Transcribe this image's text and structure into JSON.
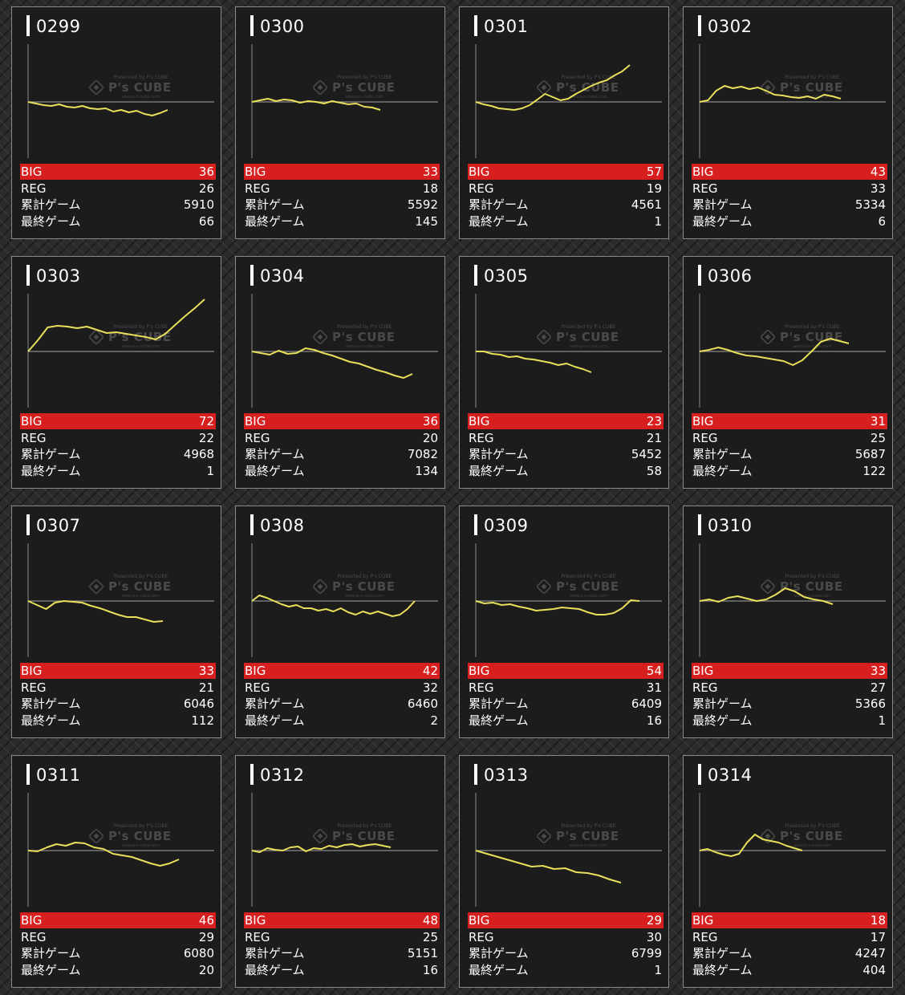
{
  "labels": {
    "big": "BIG",
    "reg": "REG",
    "total_games": "累計ゲーム",
    "last_games": "最終ゲーム"
  },
  "watermark": {
    "top": "Presented by P's CUBE",
    "brand": "P's CUBE",
    "sub": "www.p-s-cube.com"
  },
  "colors": {
    "background": "#2b2b2b",
    "card": "#1c1c1c",
    "big_bar": "#d81f1f",
    "graph_line": "#e8e05a",
    "baseline": "#8a8a8a"
  },
  "machines": [
    {
      "id": "0299",
      "big": "36",
      "reg": "26",
      "total": "5910",
      "last": "66"
    },
    {
      "id": "0300",
      "big": "33",
      "reg": "18",
      "total": "5592",
      "last": "145"
    },
    {
      "id": "0301",
      "big": "57",
      "reg": "19",
      "total": "4561",
      "last": "1"
    },
    {
      "id": "0302",
      "big": "43",
      "reg": "33",
      "total": "5334",
      "last": "6"
    },
    {
      "id": "0303",
      "big": "72",
      "reg": "22",
      "total": "4968",
      "last": "1"
    },
    {
      "id": "0304",
      "big": "36",
      "reg": "20",
      "total": "7082",
      "last": "134"
    },
    {
      "id": "0305",
      "big": "23",
      "reg": "21",
      "total": "5452",
      "last": "58"
    },
    {
      "id": "0306",
      "big": "31",
      "reg": "25",
      "total": "5687",
      "last": "122"
    },
    {
      "id": "0307",
      "big": "33",
      "reg": "21",
      "total": "6046",
      "last": "112"
    },
    {
      "id": "0308",
      "big": "42",
      "reg": "32",
      "total": "6460",
      "last": "2"
    },
    {
      "id": "0309",
      "big": "54",
      "reg": "31",
      "total": "6409",
      "last": "16"
    },
    {
      "id": "0310",
      "big": "33",
      "reg": "27",
      "total": "5366",
      "last": "1"
    },
    {
      "id": "0311",
      "big": "46",
      "reg": "29",
      "total": "6080",
      "last": "20"
    },
    {
      "id": "0312",
      "big": "48",
      "reg": "25",
      "total": "5151",
      "last": "16"
    },
    {
      "id": "0313",
      "big": "29",
      "reg": "30",
      "total": "6799",
      "last": "1"
    },
    {
      "id": "0314",
      "big": "18",
      "reg": "17",
      "total": "4247",
      "last": "404"
    }
  ],
  "chart_data": [
    {
      "type": "line",
      "series": [
        {
          "values": [
            0,
            -2,
            -4,
            -5,
            -3,
            -6,
            -7,
            -5,
            -8,
            -9,
            -8,
            -12,
            -10,
            -13,
            -11,
            -15,
            -17,
            -14,
            -10
          ]
        }
      ]
    },
    {
      "type": "line",
      "series": [
        {
          "values": [
            0,
            2,
            4,
            1,
            3,
            2,
            -1,
            1,
            0,
            -2,
            1,
            -1,
            -3,
            -2,
            -6,
            -7,
            -10
          ]
        }
      ]
    },
    {
      "type": "line",
      "series": [
        {
          "values": [
            0,
            -3,
            -5,
            -8,
            -9,
            -10,
            -8,
            -4,
            3,
            10,
            6,
            2,
            4,
            10,
            15,
            20,
            24,
            27,
            33,
            38,
            46
          ]
        }
      ]
    },
    {
      "type": "line",
      "series": [
        {
          "values": [
            0,
            2,
            14,
            20,
            17,
            19,
            16,
            18,
            14,
            9,
            8,
            6,
            5,
            7,
            4,
            9,
            7,
            4
          ]
        }
      ]
    },
    {
      "type": "line",
      "series": [
        {
          "values": [
            0,
            14,
            30,
            32,
            31,
            29,
            31,
            27,
            23,
            24,
            22,
            20,
            18,
            15,
            22,
            33,
            44,
            54,
            65
          ]
        }
      ]
    },
    {
      "type": "line",
      "series": [
        {
          "values": [
            0,
            -2,
            -4,
            1,
            -3,
            -2,
            4,
            2,
            -2,
            -5,
            -9,
            -13,
            -15,
            -19,
            -23,
            -26,
            -30,
            -33,
            -28
          ]
        }
      ]
    },
    {
      "type": "line",
      "series": [
        {
          "values": [
            0,
            0,
            -3,
            -4,
            -7,
            -6,
            -9,
            -10,
            -12,
            -14,
            -17,
            -15,
            -19,
            -22,
            -26
          ]
        }
      ]
    },
    {
      "type": "line",
      "series": [
        {
          "values": [
            0,
            2,
            5,
            2,
            -2,
            -5,
            -6,
            -8,
            -10,
            -12,
            -17,
            -11,
            0,
            12,
            16,
            13,
            10
          ]
        }
      ]
    },
    {
      "type": "line",
      "series": [
        {
          "values": [
            0,
            -5,
            -10,
            -2,
            0,
            -1,
            -2,
            -6,
            -9,
            -13,
            -17,
            -20,
            -20,
            -23,
            -26,
            -25
          ]
        }
      ]
    },
    {
      "type": "line",
      "series": [
        {
          "values": [
            0,
            7,
            4,
            0,
            -4,
            -7,
            -5,
            -9,
            -9,
            -12,
            -10,
            -13,
            -9,
            -14,
            -17,
            -13,
            -16,
            -13,
            -16,
            -19,
            -17,
            -10,
            0
          ]
        }
      ]
    },
    {
      "type": "line",
      "series": [
        {
          "values": [
            0,
            -3,
            -2,
            -5,
            -4,
            -7,
            -9,
            -12,
            -11,
            -10,
            -8,
            -9,
            -10,
            -14,
            -17,
            -17,
            -15,
            -9,
            1,
            0
          ]
        }
      ]
    },
    {
      "type": "line",
      "series": [
        {
          "values": [
            0,
            2,
            -1,
            4,
            6,
            3,
            0,
            2,
            8,
            16,
            12,
            5,
            2,
            0,
            -4
          ]
        }
      ]
    },
    {
      "type": "line",
      "series": [
        {
          "values": [
            0,
            -1,
            4,
            8,
            6,
            10,
            9,
            4,
            2,
            -4,
            -6,
            -8,
            -12,
            -16,
            -19,
            -16,
            -11
          ]
        }
      ]
    },
    {
      "type": "line",
      "series": [
        {
          "values": [
            0,
            -2,
            3,
            1,
            0,
            4,
            5,
            -1,
            3,
            2,
            6,
            4,
            7,
            8,
            5,
            7,
            8,
            6,
            4
          ]
        }
      ]
    },
    {
      "type": "line",
      "series": [
        {
          "values": [
            0,
            -4,
            -8,
            -12,
            -16,
            -20,
            -19,
            -23,
            -22,
            -27,
            -28,
            -31,
            -36,
            -40
          ]
        }
      ]
    },
    {
      "type": "line",
      "series": [
        {
          "values": [
            0,
            2,
            -2,
            -5,
            -7,
            -4,
            10,
            20,
            14,
            12,
            10,
            6,
            3,
            0
          ]
        }
      ]
    }
  ]
}
